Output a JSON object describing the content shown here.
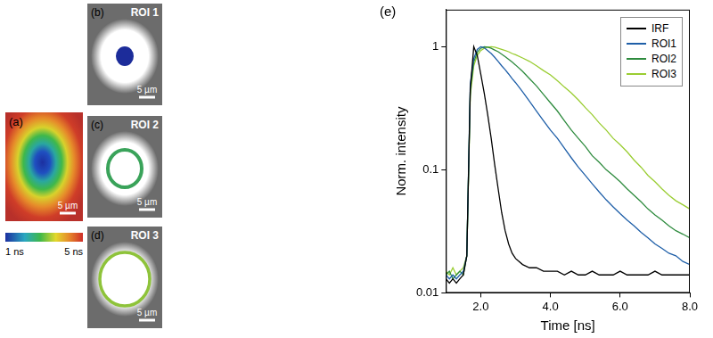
{
  "panels": [
    {
      "label": "(a)",
      "scale_bar": "5 µm",
      "colorbar": [
        "1 ns",
        "5 ns"
      ]
    },
    {
      "label": "(b)",
      "title": "ROI 1",
      "scale_bar": "5 µm"
    },
    {
      "label": "(c)",
      "title": "ROI 2",
      "scale_bar": "5 µm"
    },
    {
      "label": "(d)",
      "title": "ROI 3",
      "scale_bar": "5 µm"
    }
  ],
  "chart_data": {
    "type": "line",
    "title": "(e)",
    "x_label": "Time [ns]",
    "y_label": "Norm. intensity",
    "log": "y",
    "grid": false,
    "legend": "upper right",
    "xlim": [
      1,
      8
    ],
    "xticks": [
      {
        "value": 2,
        "label": "2.0"
      },
      {
        "value": 4,
        "label": "4.0"
      },
      {
        "value": 6,
        "label": "6.0"
      },
      {
        "value": 8,
        "label": "8.0"
      }
    ],
    "ylim": [
      0.01,
      2
    ],
    "yticks": [
      0.01,
      0.1,
      1
    ],
    "x": [
      1.0,
      1.1,
      1.2,
      1.3,
      1.4,
      1.5,
      1.6,
      1.7,
      1.8,
      1.9,
      2.0,
      2.1,
      2.2,
      2.3,
      2.4,
      2.5,
      2.6,
      2.7,
      2.8,
      2.9,
      3.0,
      3.2,
      3.4,
      3.6,
      3.8,
      4.0,
      4.2,
      4.4,
      4.6,
      4.8,
      5.0,
      5.2,
      5.4,
      5.6,
      5.8,
      6.0,
      6.2,
      6.4,
      6.6,
      6.8,
      7.0,
      7.2,
      7.4,
      7.6,
      7.8,
      8.0
    ],
    "series": [
      {
        "name": "IRF",
        "color": "#000000",
        "values": [
          0.013,
          0.012,
          0.013,
          0.012,
          0.013,
          0.014,
          0.02,
          0.45,
          1.0,
          0.85,
          0.6,
          0.42,
          0.28,
          0.18,
          0.11,
          0.07,
          0.045,
          0.032,
          0.025,
          0.021,
          0.019,
          0.017,
          0.016,
          0.016,
          0.015,
          0.015,
          0.015,
          0.014,
          0.015,
          0.014,
          0.014,
          0.015,
          0.014,
          0.014,
          0.014,
          0.015,
          0.014,
          0.014,
          0.014,
          0.014,
          0.015,
          0.014,
          0.014,
          0.014,
          0.014,
          0.014
        ]
      },
      {
        "name": "ROI1",
        "color": "#1f5fa8",
        "values": [
          0.014,
          0.013,
          0.014,
          0.013,
          0.014,
          0.015,
          0.02,
          0.5,
          0.8,
          0.95,
          1.0,
          0.98,
          0.93,
          0.88,
          0.82,
          0.76,
          0.7,
          0.65,
          0.6,
          0.55,
          0.51,
          0.43,
          0.36,
          0.3,
          0.25,
          0.21,
          0.18,
          0.15,
          0.125,
          0.105,
          0.09,
          0.077,
          0.066,
          0.057,
          0.05,
          0.044,
          0.039,
          0.035,
          0.031,
          0.028,
          0.025,
          0.023,
          0.021,
          0.02,
          0.018,
          0.017
        ]
      },
      {
        "name": "ROI2",
        "color": "#2e8b3e",
        "values": [
          0.014,
          0.015,
          0.013,
          0.014,
          0.015,
          0.014,
          0.02,
          0.45,
          0.75,
          0.9,
          0.97,
          1.0,
          0.99,
          0.97,
          0.94,
          0.91,
          0.87,
          0.83,
          0.79,
          0.75,
          0.71,
          0.63,
          0.55,
          0.48,
          0.41,
          0.35,
          0.3,
          0.25,
          0.21,
          0.18,
          0.155,
          0.13,
          0.115,
          0.1,
          0.09,
          0.08,
          0.07,
          0.062,
          0.055,
          0.048,
          0.043,
          0.039,
          0.035,
          0.032,
          0.03,
          0.028
        ]
      },
      {
        "name": "ROI3",
        "color": "#9acd32",
        "values": [
          0.015,
          0.014,
          0.016,
          0.014,
          0.015,
          0.016,
          0.02,
          0.4,
          0.7,
          0.85,
          0.93,
          0.97,
          0.99,
          1.0,
          0.99,
          0.97,
          0.95,
          0.93,
          0.91,
          0.88,
          0.86,
          0.81,
          0.76,
          0.7,
          0.64,
          0.59,
          0.53,
          0.47,
          0.42,
          0.37,
          0.32,
          0.28,
          0.24,
          0.21,
          0.18,
          0.16,
          0.14,
          0.12,
          0.105,
          0.09,
          0.08,
          0.07,
          0.062,
          0.056,
          0.052,
          0.048
        ]
      }
    ]
  }
}
